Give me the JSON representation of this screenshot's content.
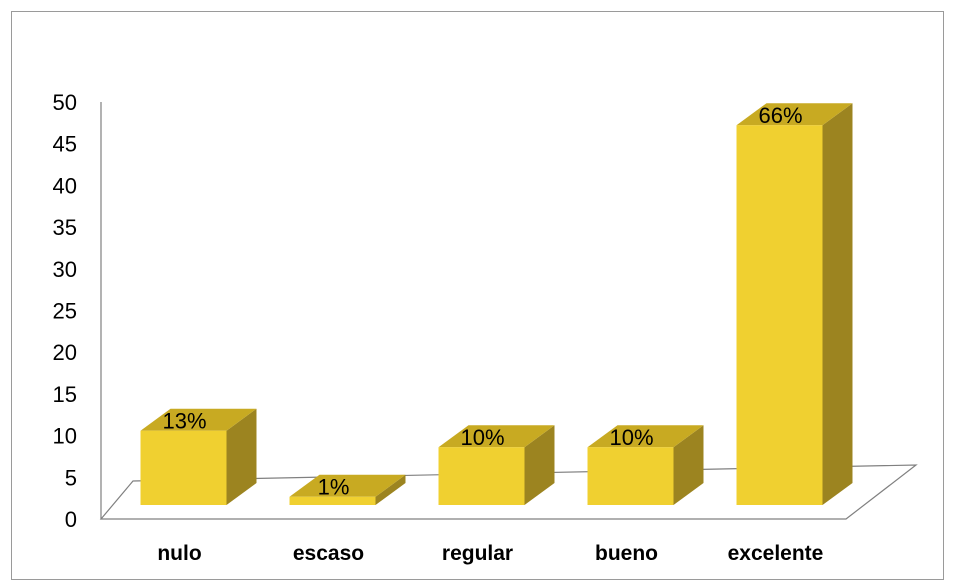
{
  "chart_data": {
    "type": "bar",
    "categories": [
      "nulo",
      "escaso",
      "regular",
      "bueno",
      "excelente"
    ],
    "values": [
      9,
      1,
      7,
      7,
      46
    ],
    "data_labels": [
      "13%",
      "1%",
      "10%",
      "10%",
      "66%"
    ],
    "ylim": [
      0,
      50
    ],
    "yticks": [
      "0",
      "5",
      "10",
      "15",
      "20",
      "25",
      "30",
      "35",
      "40",
      "45",
      "50"
    ],
    "title": "",
    "xlabel": "",
    "ylabel": "",
    "grid": false,
    "legend": "none",
    "style": "3d-column"
  },
  "colors": {
    "bar_front": "#F0D030",
    "bar_top": "#C8AA22",
    "bar_side": "#9C8420",
    "axis": "#808080",
    "frame": "#9a9a9a"
  }
}
